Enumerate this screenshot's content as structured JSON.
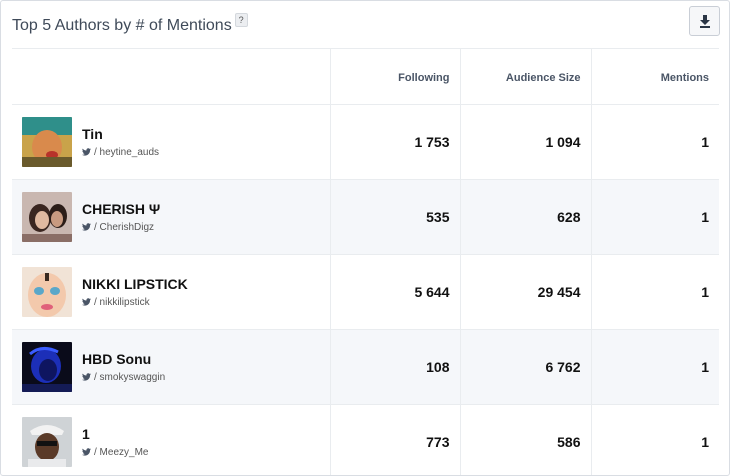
{
  "widget": {
    "title": "Top 5 Authors by # of Mentions",
    "help_label": "?",
    "download_icon": "download-icon"
  },
  "table": {
    "columns": [
      "",
      "Following",
      "Audience Size",
      "Mentions"
    ],
    "rows": [
      {
        "name": "Tin",
        "handle": "/ heytine_auds",
        "following": "1 753",
        "audience": "1 094",
        "mentions": "1"
      },
      {
        "name": "CHERISH Ψ",
        "handle": "/ CherishDigz",
        "following": "535",
        "audience": "628",
        "mentions": "1"
      },
      {
        "name": "NIKKI LIPSTICK",
        "handle": "/ nikkilipstick",
        "following": "5 644",
        "audience": "29 454",
        "mentions": "1"
      },
      {
        "name": "HBD Sonu",
        "handle": "/ smokyswaggin",
        "following": "108",
        "audience": "6 762",
        "mentions": "1"
      },
      {
        "name": "1",
        "handle": "/ Meezy_Me",
        "following": "773",
        "audience": "586",
        "mentions": "1"
      }
    ]
  },
  "colors": {
    "twitter_icon": "#4a5566",
    "row_alt": "#f5f7fa",
    "border": "#e9ecef"
  }
}
